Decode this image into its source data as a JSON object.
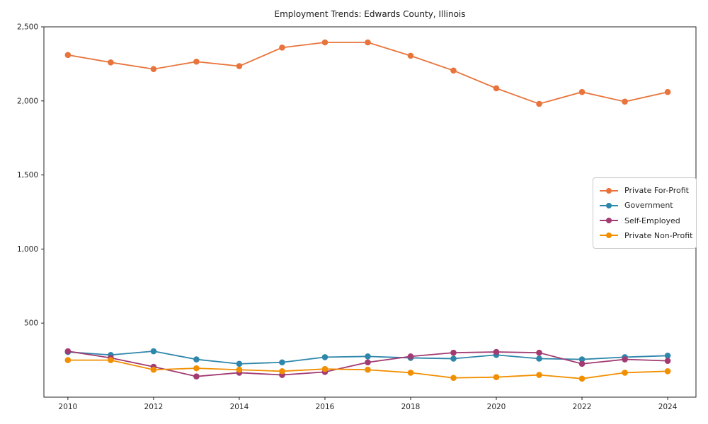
{
  "chart_data": {
    "type": "line",
    "title": "Employment Trends: Edwards County, Illinois",
    "xlabel": "",
    "ylabel": "",
    "x": [
      2010,
      2011,
      2012,
      2013,
      2014,
      2015,
      2016,
      2017,
      2018,
      2019,
      2020,
      2021,
      2022,
      2023,
      2024
    ],
    "series": [
      {
        "name": "Private For-Profit",
        "color": "#e8743b",
        "values": [
          2310,
          2260,
          2215,
          2265,
          2235,
          2360,
          2395,
          2395,
          2305,
          2205,
          2085,
          1980,
          2060,
          1995,
          2060
        ]
      },
      {
        "name": "Government",
        "color": "#2e86ab",
        "values": [
          305,
          285,
          310,
          255,
          225,
          235,
          270,
          275,
          265,
          260,
          285,
          260,
          255,
          270,
          280
        ]
      },
      {
        "name": "Self-Employed",
        "color": "#a23b72",
        "values": [
          310,
          265,
          205,
          140,
          165,
          150,
          170,
          235,
          275,
          300,
          305,
          300,
          225,
          255,
          245
        ]
      },
      {
        "name": "Private Non-Profit",
        "color": "#f18f01",
        "values": [
          250,
          250,
          185,
          195,
          185,
          175,
          190,
          185,
          165,
          130,
          135,
          150,
          125,
          165,
          175
        ]
      }
    ],
    "xticks": [
      2010,
      2012,
      2014,
      2016,
      2018,
      2020,
      2022,
      2024
    ],
    "yticks": [
      500,
      1000,
      1500,
      2000,
      2500
    ],
    "ytick_labels": [
      "500",
      "1,000",
      "1,500",
      "2,000",
      "2,500"
    ],
    "xlim": [
      2009.44,
      2024.66
    ],
    "ylim": [
      0,
      2500
    ],
    "grid": false,
    "legend_position": "center-right",
    "marker": "o",
    "axis_color": "#262626",
    "tick_label_color": "#262626"
  }
}
